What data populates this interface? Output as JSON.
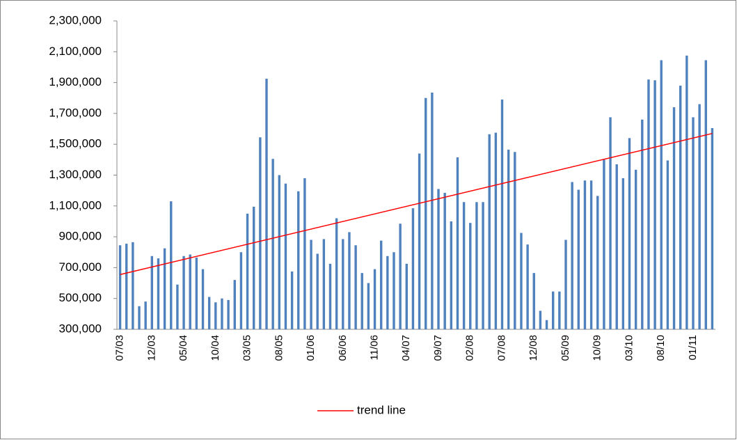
{
  "chart_data": {
    "type": "bar",
    "categories": [
      "07/03",
      null,
      null,
      null,
      null,
      "12/03",
      null,
      null,
      null,
      null,
      "05/04",
      null,
      null,
      null,
      null,
      "10/04",
      null,
      null,
      null,
      null,
      "03/05",
      null,
      null,
      null,
      null,
      "08/05",
      null,
      null,
      null,
      null,
      "01/06",
      null,
      null,
      null,
      null,
      "06/06",
      null,
      null,
      null,
      null,
      "11/06",
      null,
      null,
      null,
      null,
      "04/07",
      null,
      null,
      null,
      null,
      "09/07",
      null,
      null,
      null,
      null,
      "02/08",
      null,
      null,
      null,
      null,
      "07/08",
      null,
      null,
      null,
      null,
      "12/08",
      null,
      null,
      null,
      null,
      "05/09",
      null,
      null,
      null,
      null,
      "10/09",
      null,
      null,
      null,
      null,
      "03/10",
      null,
      null,
      null,
      null,
      "08/10",
      null,
      null,
      null,
      null,
      "01/11",
      null,
      null,
      null
    ],
    "values": [
      845000,
      855000,
      865000,
      450000,
      480000,
      775000,
      760000,
      825000,
      1130000,
      590000,
      775000,
      785000,
      765000,
      690000,
      510000,
      475000,
      500000,
      490000,
      620000,
      800000,
      1050000,
      1095000,
      1545000,
      1925000,
      1405000,
      1300000,
      1245000,
      675000,
      1195000,
      1280000,
      880000,
      790000,
      885000,
      725000,
      1020000,
      885000,
      930000,
      845000,
      665000,
      600000,
      690000,
      875000,
      775000,
      800000,
      985000,
      725000,
      1085000,
      1440000,
      1800000,
      1835000,
      1210000,
      1185000,
      1000000,
      1415000,
      1125000,
      990000,
      1125000,
      1125000,
      1565000,
      1575000,
      1790000,
      1465000,
      1450000,
      925000,
      850000,
      665000,
      420000,
      360000,
      545000,
      545000,
      880000,
      1255000,
      1205000,
      1265000,
      1265000,
      1165000,
      1400000,
      1675000,
      1370000,
      1280000,
      1540000,
      1335000,
      1660000,
      1920000,
      1915000,
      2045000,
      1395000,
      1740000,
      1880000,
      2075000,
      1675000,
      1760000,
      2045000,
      1605000
    ],
    "color": "#4f81bd",
    "trend": {
      "name": "trend line",
      "color": "#ff0000",
      "values": [
        655000,
        1570000
      ]
    },
    "ylim": [
      300000,
      2300000
    ],
    "yticks": [
      {
        "value": 300000,
        "label": "300,000"
      },
      {
        "value": 500000,
        "label": "500,000"
      },
      {
        "value": 700000,
        "label": "700,000"
      },
      {
        "value": 900000,
        "label": "900,000"
      },
      {
        "value": 1100000,
        "label": "1,100,000"
      },
      {
        "value": 1300000,
        "label": "1,300,000"
      },
      {
        "value": 1500000,
        "label": "1,500,000"
      },
      {
        "value": 1700000,
        "label": "1,700,000"
      },
      {
        "value": 1900000,
        "label": "1,900,000"
      },
      {
        "value": 2100000,
        "label": "2,100,000"
      },
      {
        "value": 2300000,
        "label": "2,300,000"
      }
    ],
    "grid": false,
    "legend": "bottom"
  }
}
